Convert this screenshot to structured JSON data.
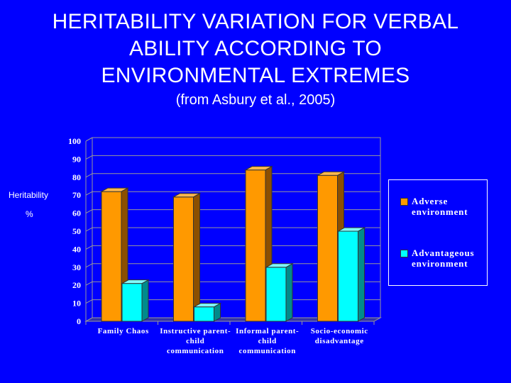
{
  "title_lines": [
    "HERITABILITY VARIATION FOR VERBAL",
    "ABILITY ACCORDING TO",
    "ENVIRONMENTAL EXTREMES"
  ],
  "subtitle": "(from Asbury et al., 2005)",
  "ylabel_line1": "Heritability",
  "ylabel_line2": "%",
  "legend": [
    {
      "line1": "Adverse",
      "line2": "environment",
      "color": "#ff9900"
    },
    {
      "line1": "Advantageous",
      "line2": "environment",
      "color": "#00ffff"
    }
  ],
  "chart_data": {
    "type": "bar",
    "title": "HERITABILITY VARIATION FOR VERBAL ABILITY ACCORDING TO ENVIRONMENTAL EXTREMES",
    "subtitle": "(from Asbury et al., 2005)",
    "xlabel": "",
    "ylabel": "Heritability %",
    "ylim": [
      0,
      100
    ],
    "yticks": [
      0,
      10,
      20,
      30,
      40,
      50,
      60,
      70,
      80,
      90,
      100
    ],
    "grid": true,
    "legend_position": "right",
    "categories": [
      [
        "Family Chaos"
      ],
      [
        "Instructive parent-",
        "child",
        "communication"
      ],
      [
        "Informal parent-",
        "child",
        "communication"
      ],
      [
        "Socio-economic",
        "disadvantage"
      ]
    ],
    "series": [
      {
        "name": "Adverse environment",
        "color": "#ff9900",
        "side": "#8b4f00",
        "top": "#ffb84d",
        "values": [
          72,
          69,
          84,
          81
        ]
      },
      {
        "name": "Advantageous environment",
        "color": "#00ffff",
        "side": "#008b8b",
        "top": "#80ffff",
        "values": [
          21,
          8,
          30,
          50
        ]
      }
    ]
  }
}
